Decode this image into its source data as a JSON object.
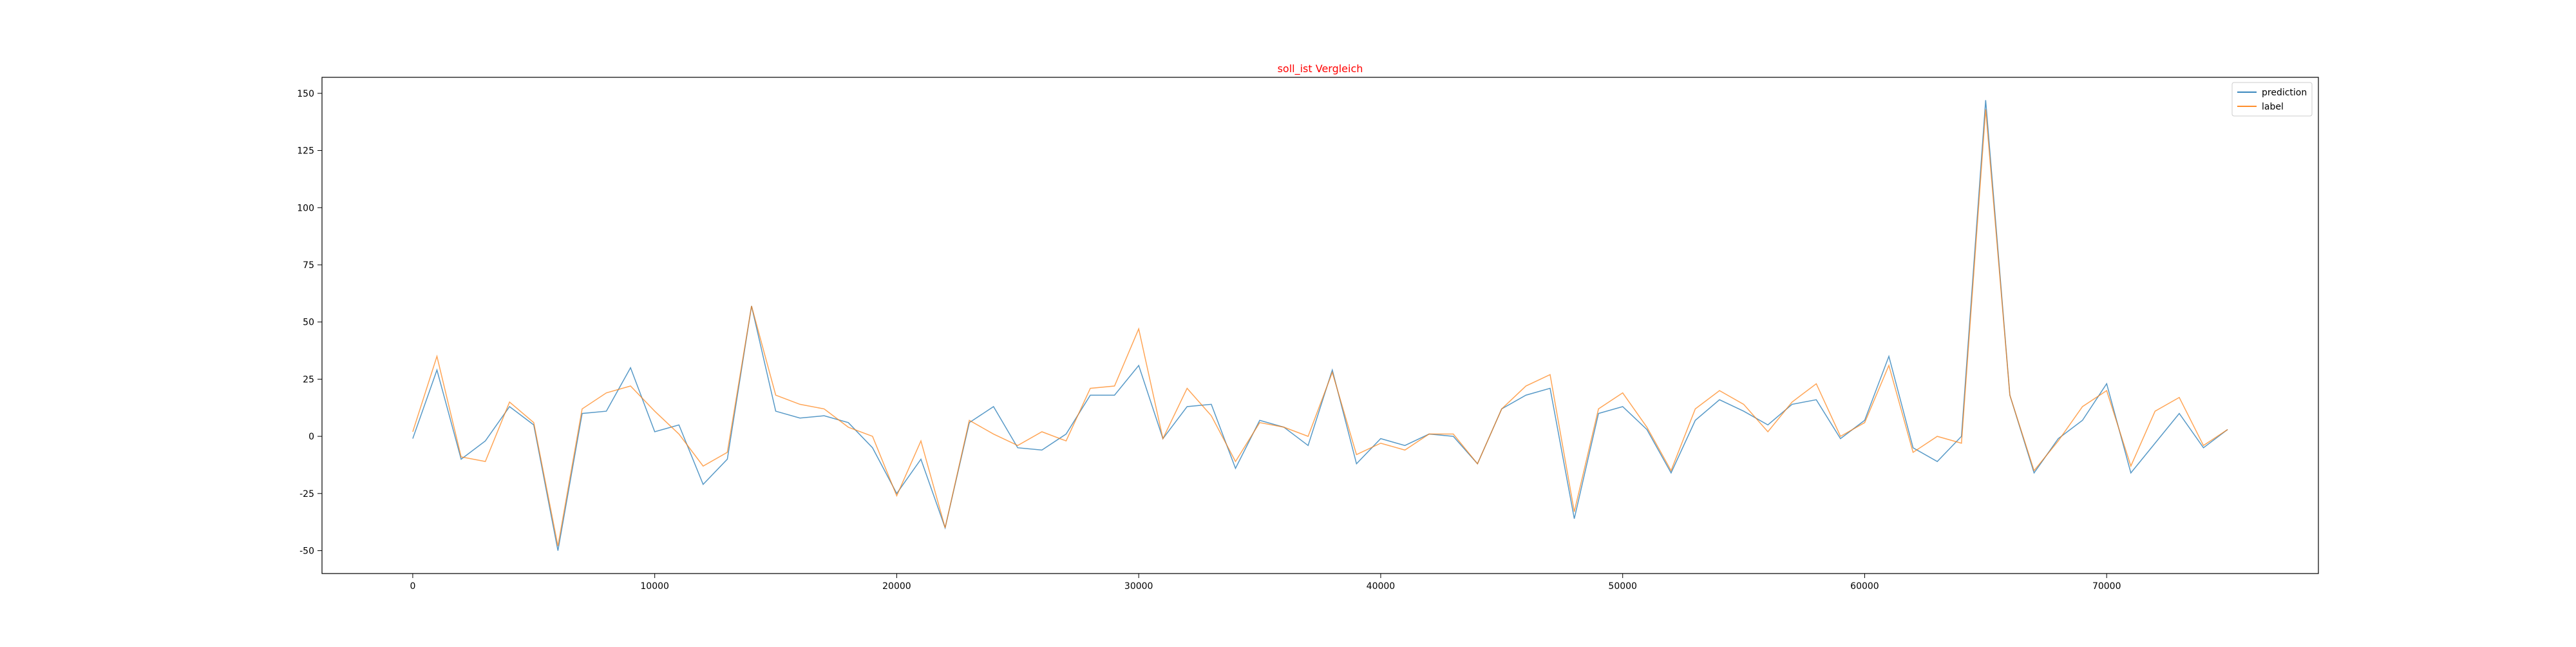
{
  "chart_data": {
    "type": "line",
    "title": "soll_ist Vergleich",
    "title_color": "#ff0000",
    "xlabel": "",
    "ylabel": "",
    "xlim": [
      -3750,
      78750
    ],
    "ylim": [
      -60,
      157
    ],
    "x_ticks": [
      0,
      10000,
      20000,
      30000,
      40000,
      50000,
      60000,
      70000
    ],
    "y_ticks": [
      -50,
      -25,
      0,
      25,
      50,
      75,
      100,
      125,
      150
    ],
    "grid": false,
    "legend_position": "top-right",
    "x": [
      0,
      1000,
      2000,
      3000,
      4000,
      5000,
      6000,
      7000,
      8000,
      9000,
      10000,
      11000,
      12000,
      13000,
      14000,
      15000,
      16000,
      17000,
      18000,
      19000,
      20000,
      21000,
      22000,
      23000,
      24000,
      25000,
      26000,
      27000,
      28000,
      29000,
      30000,
      31000,
      32000,
      33000,
      34000,
      35000,
      36000,
      37000,
      38000,
      39000,
      40000,
      41000,
      42000,
      43000,
      44000,
      45000,
      46000,
      47000,
      48000,
      49000,
      50000,
      51000,
      52000,
      53000,
      54000,
      55000,
      56000,
      57000,
      58000,
      59000,
      60000,
      61000,
      62000,
      63000,
      64000,
      65000,
      66000,
      67000,
      68000,
      69000,
      70000,
      71000,
      72000,
      73000,
      74000,
      75000
    ],
    "series": [
      {
        "name": "prediction",
        "color": "#1f77b4",
        "values": [
          -1,
          29,
          -10,
          -2,
          13,
          5,
          -50,
          10,
          11,
          30,
          2,
          5,
          -21,
          -10,
          57,
          11,
          8,
          9,
          6,
          -5,
          -25,
          -10,
          -40,
          6,
          13,
          -5,
          -6,
          1,
          18,
          18,
          31,
          -1,
          13,
          14,
          -14,
          7,
          4,
          -4,
          29,
          -12,
          -1,
          -4,
          1,
          0,
          -12,
          12,
          18,
          21,
          -36,
          10,
          13,
          3,
          -16,
          7,
          16,
          11,
          5,
          14,
          16,
          -1,
          7,
          35,
          -5,
          -11,
          0,
          147,
          18,
          -16,
          -1,
          7,
          23,
          -16,
          -3,
          10,
          -5,
          3
        ]
      },
      {
        "name": "label",
        "color": "#ff7f0e",
        "values": [
          2,
          35,
          -9,
          -11,
          15,
          6,
          -48,
          12,
          19,
          22,
          11,
          1,
          -13,
          -7,
          57,
          18,
          14,
          12,
          4,
          0,
          -26,
          -2,
          -40,
          7,
          1,
          -4,
          2,
          -2,
          21,
          22,
          47,
          -1,
          21,
          9,
          -11,
          6,
          4,
          0,
          28,
          -8,
          -3,
          -6,
          1,
          1,
          -12,
          12,
          22,
          27,
          -33,
          12,
          19,
          4,
          -15,
          12,
          20,
          14,
          2,
          15,
          23,
          0,
          6,
          31,
          -7,
          0,
          -3,
          143,
          18,
          -15,
          -2,
          13,
          20,
          -13,
          11,
          17,
          -4,
          3
        ]
      }
    ]
  }
}
